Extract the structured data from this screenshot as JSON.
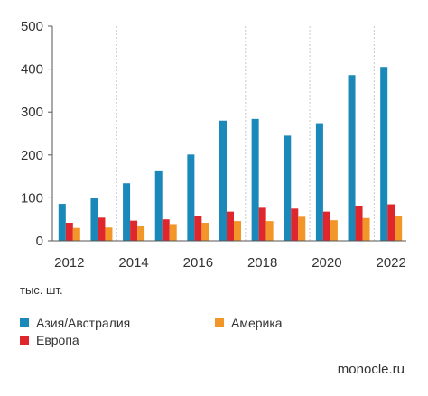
{
  "chart_data": {
    "type": "bar",
    "categories": [
      "2012",
      "2013",
      "2014",
      "2015",
      "2016",
      "2017",
      "2018",
      "2019",
      "2020",
      "2021",
      "2022"
    ],
    "x_tick_labels": [
      "2012",
      "2014",
      "2016",
      "2018",
      "2020",
      "2022"
    ],
    "y_ticks": [
      0,
      100,
      200,
      300,
      400,
      500
    ],
    "ylim": [
      0,
      500
    ],
    "unit_label": "тыс. шт.",
    "grid": "vertical dashed",
    "legend_position": "bottom",
    "series": [
      {
        "name": "Азия/Австралия",
        "color": "#1a88b8",
        "values": [
          86,
          100,
          134,
          162,
          201,
          280,
          284,
          245,
          274,
          386,
          405
        ]
      },
      {
        "name": "Европа",
        "color": "#e0262d",
        "values": [
          42,
          54,
          47,
          50,
          58,
          68,
          77,
          75,
          68,
          82,
          85
        ]
      },
      {
        "name": "Америка",
        "color": "#f3962a",
        "values": [
          30,
          31,
          34,
          39,
          42,
          46,
          46,
          56,
          48,
          53,
          58
        ]
      }
    ]
  },
  "source": "monocle.ru"
}
